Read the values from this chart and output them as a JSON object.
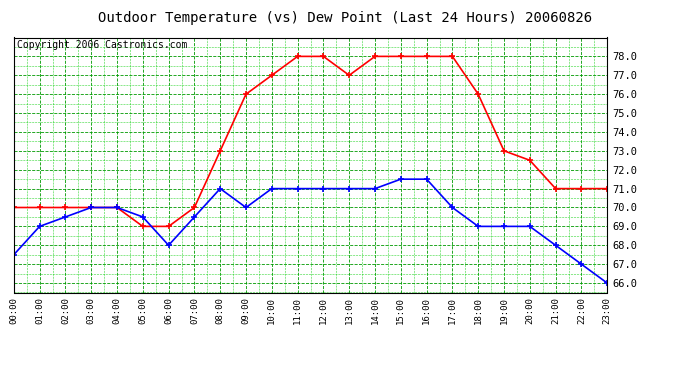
{
  "title": "Outdoor Temperature (vs) Dew Point (Last 24 Hours) 20060826",
  "copyright": "Copyright 2006 Castronics.com",
  "hours": [
    0,
    1,
    2,
    3,
    4,
    5,
    6,
    7,
    8,
    9,
    10,
    11,
    12,
    13,
    14,
    15,
    16,
    17,
    18,
    19,
    20,
    21,
    22,
    23
  ],
  "tick_labels": [
    "00:00",
    "01:00",
    "02:00",
    "03:00",
    "04:00",
    "05:00",
    "06:00",
    "07:00",
    "08:00",
    "09:00",
    "10:00",
    "11:00",
    "12:00",
    "13:00",
    "14:00",
    "15:00",
    "16:00",
    "17:00",
    "18:00",
    "19:00",
    "20:00",
    "21:00",
    "22:00",
    "23:00"
  ],
  "temp": [
    70.0,
    70.0,
    70.0,
    70.0,
    70.0,
    69.0,
    69.0,
    70.0,
    73.0,
    76.0,
    77.0,
    78.0,
    78.0,
    77.0,
    78.0,
    78.0,
    78.0,
    78.0,
    76.0,
    73.0,
    72.5,
    71.0,
    71.0,
    71.0
  ],
  "dew": [
    67.5,
    69.0,
    69.5,
    70.0,
    70.0,
    69.5,
    68.0,
    69.5,
    71.0,
    70.0,
    71.0,
    71.0,
    71.0,
    71.0,
    71.0,
    71.5,
    71.5,
    70.0,
    69.0,
    69.0,
    69.0,
    68.0,
    67.0,
    66.0
  ],
  "temp_color": "red",
  "dew_color": "blue",
  "bg_color": "#ffffff",
  "plot_bg_color": "#ffffff",
  "grid_color_major": "#009900",
  "grid_color_minor": "#00cc00",
  "ylim": [
    65.5,
    79.0
  ],
  "yticks": [
    66.0,
    67.0,
    68.0,
    69.0,
    70.0,
    71.0,
    72.0,
    73.0,
    74.0,
    75.0,
    76.0,
    77.0,
    78.0
  ],
  "title_fontsize": 10,
  "copyright_fontsize": 7,
  "marker": "+",
  "marker_size": 5,
  "linewidth": 1.2
}
